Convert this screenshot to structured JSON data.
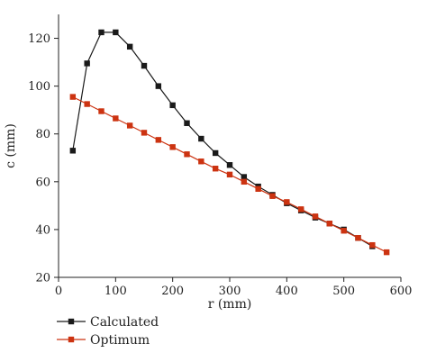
{
  "chart_data": {
    "type": "line",
    "xlabel": "r (mm)",
    "ylabel": "c (mm)",
    "xlim": [
      0,
      600
    ],
    "ylim": [
      20,
      130
    ],
    "xticks": [
      0,
      100,
      200,
      300,
      400,
      500,
      600
    ],
    "yticks": [
      20,
      40,
      60,
      80,
      100,
      120
    ],
    "grid": false,
    "legend_position": "bottom-left",
    "series": [
      {
        "name": "Calculated",
        "color": "#1a1a1a",
        "marker": "square",
        "x": [
          25,
          50,
          75,
          100,
          125,
          150,
          175,
          200,
          225,
          250,
          275,
          300,
          325,
          350,
          375,
          400,
          425,
          450,
          475,
          500,
          525,
          550
        ],
        "y": [
          73,
          109.5,
          122.5,
          122.5,
          116.5,
          108.5,
          100,
          92,
          84.5,
          78,
          72,
          67,
          62,
          58,
          54.5,
          51,
          48,
          45,
          42.5,
          40,
          36.5,
          33
        ]
      },
      {
        "name": "Optimum",
        "color": "#cc3311",
        "marker": "square",
        "x": [
          25,
          50,
          75,
          100,
          125,
          150,
          175,
          200,
          225,
          250,
          275,
          300,
          325,
          350,
          375,
          400,
          425,
          450,
          475,
          500,
          525,
          550,
          575
        ],
        "y": [
          95.5,
          92.5,
          89.5,
          86.5,
          83.5,
          80.5,
          77.5,
          74.5,
          71.5,
          68.5,
          65.5,
          63,
          60,
          57,
          54,
          51.5,
          48.5,
          45.5,
          42.5,
          39.5,
          36.5,
          33.5,
          30.5
        ]
      }
    ]
  }
}
